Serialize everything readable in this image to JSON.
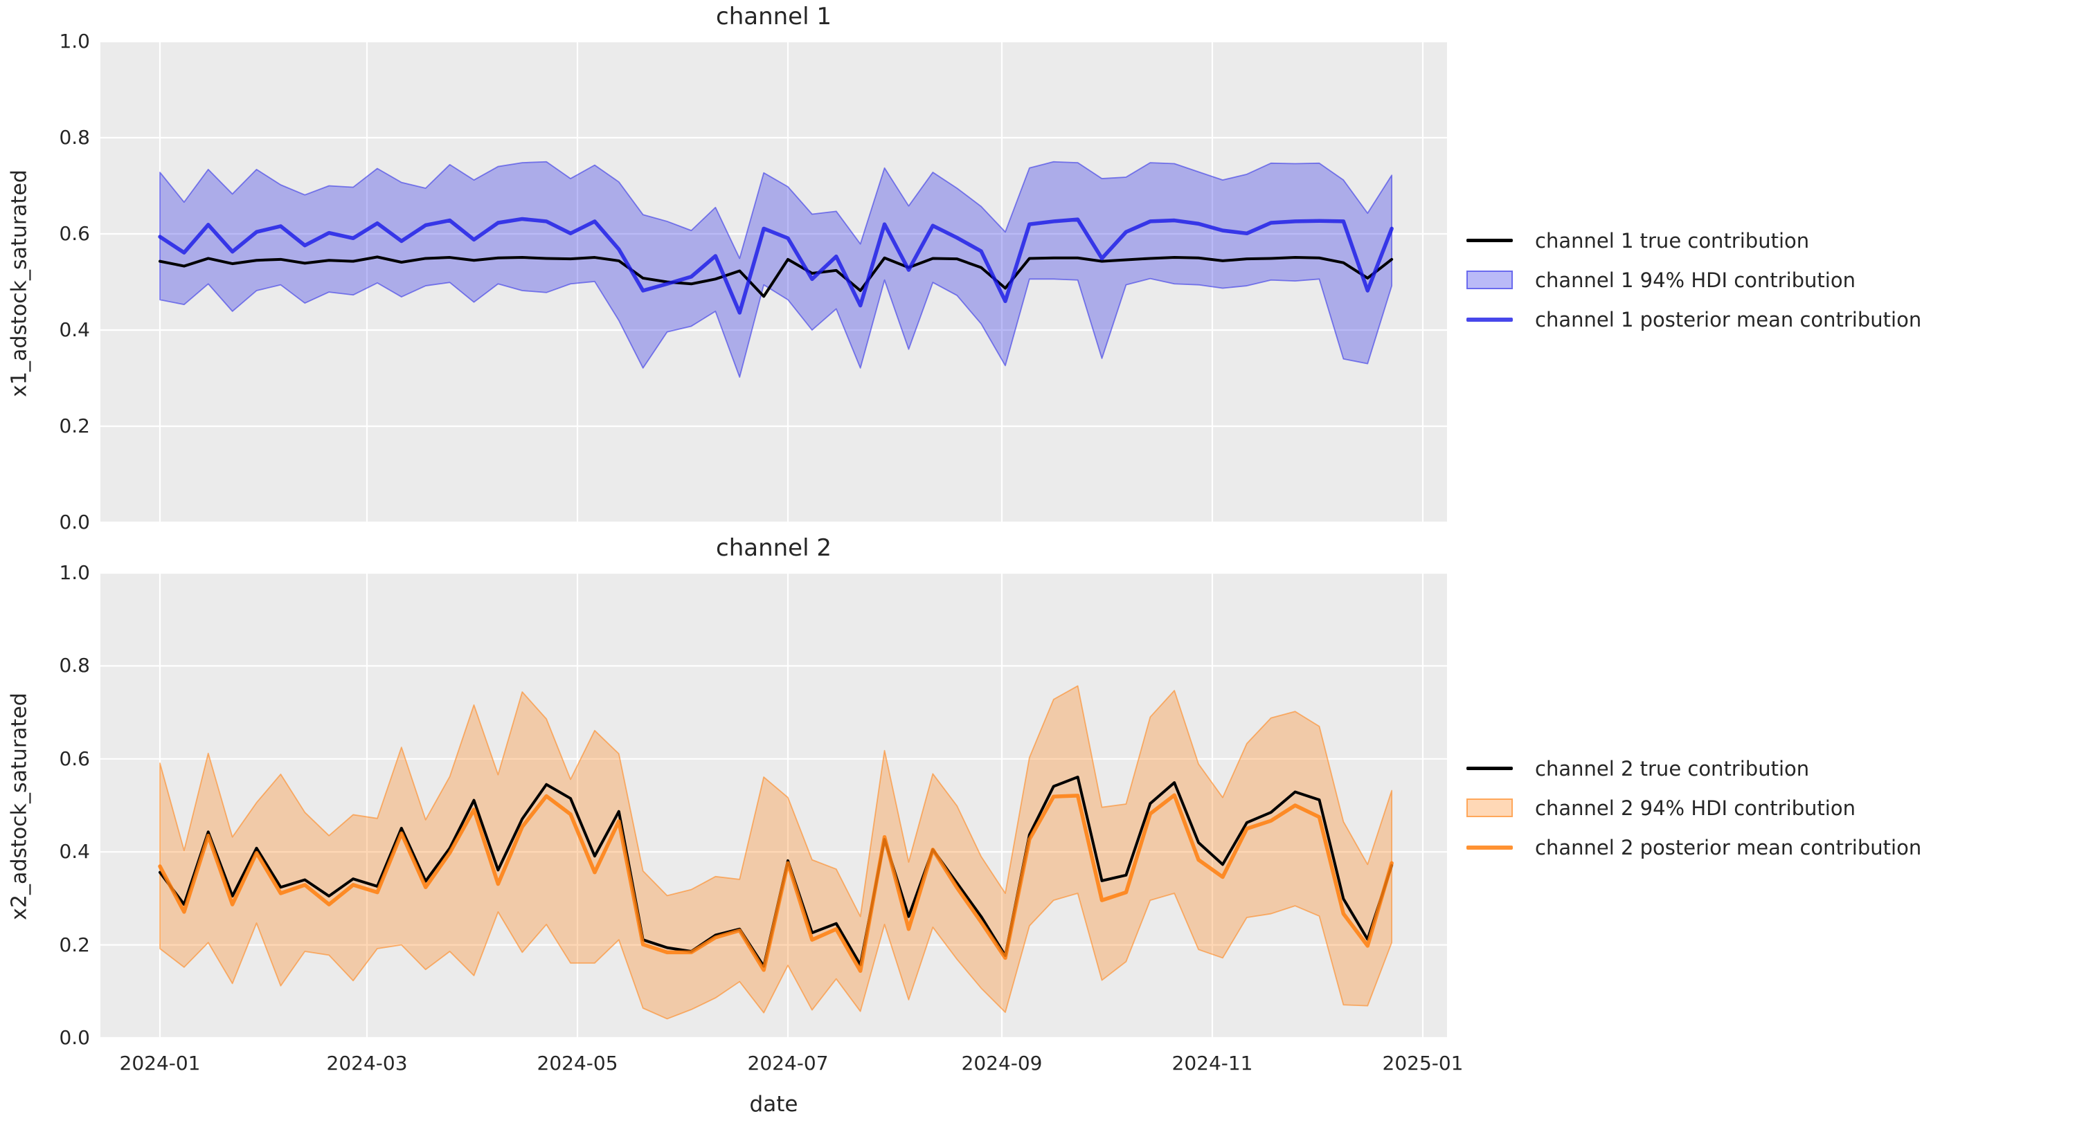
{
  "figure": {
    "xlabel": "date",
    "background": "#ffffff",
    "plot_background": "#ebebeb",
    "grid_color": "#ffffff"
  },
  "axis": {
    "xticks": [
      {
        "label": "2024-01",
        "day": 0
      },
      {
        "label": "2024-03",
        "day": 60
      },
      {
        "label": "2024-05",
        "day": 121
      },
      {
        "label": "2024-07",
        "day": 182
      },
      {
        "label": "2024-09",
        "day": 244
      },
      {
        "label": "2024-11",
        "day": 305
      },
      {
        "label": "2025-01",
        "day": 366
      }
    ],
    "ytick_labels": [
      "0.0",
      "0.2",
      "0.4",
      "0.6",
      "0.8",
      "1.0"
    ]
  },
  "chart_data": [
    {
      "type": "line",
      "title": "channel 1",
      "ylabel": "x1_adstock_saturated",
      "ylim": [
        0.0,
        1.0
      ],
      "grid": true,
      "legend_position": "right",
      "x_dates": [
        "2024-01-01",
        "2024-01-08",
        "2024-01-15",
        "2024-01-22",
        "2024-01-29",
        "2024-02-05",
        "2024-02-12",
        "2024-02-19",
        "2024-02-26",
        "2024-03-04",
        "2024-03-11",
        "2024-03-18",
        "2024-03-25",
        "2024-04-01",
        "2024-04-08",
        "2024-04-15",
        "2024-04-22",
        "2024-04-29",
        "2024-05-06",
        "2024-05-13",
        "2024-05-20",
        "2024-05-27",
        "2024-06-03",
        "2024-06-10",
        "2024-06-17",
        "2024-06-24",
        "2024-07-01",
        "2024-07-08",
        "2024-07-15",
        "2024-07-22",
        "2024-07-29",
        "2024-08-05",
        "2024-08-12",
        "2024-08-19",
        "2024-08-26",
        "2024-09-02",
        "2024-09-09",
        "2024-09-16",
        "2024-09-23",
        "2024-09-30",
        "2024-10-07",
        "2024-10-14",
        "2024-10-21",
        "2024-10-28",
        "2024-11-04",
        "2024-11-11",
        "2024-11-18",
        "2024-11-25",
        "2024-12-02",
        "2024-12-09",
        "2024-12-16",
        "2024-12-23"
      ],
      "series": [
        {
          "name": "channel 1 true contribution",
          "role": "true",
          "color": "#000000",
          "values": [
            0.543,
            0.533,
            0.549,
            0.538,
            0.545,
            0.547,
            0.539,
            0.545,
            0.543,
            0.552,
            0.541,
            0.549,
            0.551,
            0.545,
            0.55,
            0.551,
            0.549,
            0.548,
            0.551,
            0.544,
            0.508,
            0.5,
            0.496,
            0.506,
            0.523,
            0.47,
            0.547,
            0.518,
            0.524,
            0.482,
            0.55,
            0.53,
            0.549,
            0.548,
            0.53,
            0.487,
            0.549,
            0.55,
            0.55,
            0.543,
            0.546,
            0.549,
            0.551,
            0.55,
            0.544,
            0.548,
            0.549,
            0.551,
            0.55,
            0.54,
            0.508,
            0.547
          ]
        },
        {
          "name": "channel 1 94% HDI contribution",
          "role": "band",
          "fill": "rgba(25,25,230,0.30)",
          "edge": "rgba(25,25,230,0.50)",
          "hi": [
            0.728,
            0.666,
            0.734,
            0.683,
            0.734,
            0.702,
            0.681,
            0.7,
            0.697,
            0.736,
            0.707,
            0.695,
            0.744,
            0.712,
            0.74,
            0.748,
            0.75,
            0.715,
            0.743,
            0.708,
            0.64,
            0.626,
            0.607,
            0.655,
            0.549,
            0.727,
            0.698,
            0.641,
            0.647,
            0.579,
            0.737,
            0.658,
            0.728,
            0.695,
            0.657,
            0.604,
            0.737,
            0.75,
            0.748,
            0.715,
            0.718,
            0.748,
            0.746,
            0.729,
            0.712,
            0.724,
            0.747,
            0.746,
            0.747,
            0.712,
            0.643,
            0.722
          ],
          "lo": [
            0.463,
            0.453,
            0.496,
            0.439,
            0.482,
            0.494,
            0.456,
            0.479,
            0.473,
            0.498,
            0.469,
            0.492,
            0.499,
            0.458,
            0.496,
            0.482,
            0.478,
            0.496,
            0.501,
            0.42,
            0.321,
            0.396,
            0.408,
            0.439,
            0.302,
            0.494,
            0.463,
            0.4,
            0.444,
            0.321,
            0.504,
            0.36,
            0.499,
            0.472,
            0.413,
            0.326,
            0.506,
            0.506,
            0.504,
            0.341,
            0.494,
            0.507,
            0.496,
            0.494,
            0.487,
            0.492,
            0.504,
            0.502,
            0.506,
            0.34,
            0.33,
            0.492
          ]
        },
        {
          "name": "channel 1 posterior mean contribution",
          "role": "mean",
          "color": "rgba(25,25,230,0.80)",
          "values": [
            0.594,
            0.561,
            0.619,
            0.563,
            0.604,
            0.616,
            0.576,
            0.602,
            0.591,
            0.622,
            0.585,
            0.618,
            0.628,
            0.588,
            0.623,
            0.631,
            0.626,
            0.601,
            0.626,
            0.568,
            0.482,
            0.496,
            0.511,
            0.554,
            0.436,
            0.611,
            0.591,
            0.506,
            0.553,
            0.451,
            0.62,
            0.525,
            0.617,
            0.592,
            0.564,
            0.46,
            0.62,
            0.626,
            0.63,
            0.549,
            0.604,
            0.626,
            0.628,
            0.621,
            0.607,
            0.601,
            0.623,
            0.626,
            0.627,
            0.626,
            0.482,
            0.611
          ]
        }
      ]
    },
    {
      "type": "line",
      "title": "channel 2",
      "ylabel": "x2_adstock_saturated",
      "ylim": [
        0.0,
        1.0
      ],
      "grid": true,
      "legend_position": "right",
      "x_dates": [
        "2024-01-01",
        "2024-01-08",
        "2024-01-15",
        "2024-01-22",
        "2024-01-29",
        "2024-02-05",
        "2024-02-12",
        "2024-02-19",
        "2024-02-26",
        "2024-03-04",
        "2024-03-11",
        "2024-03-18",
        "2024-03-25",
        "2024-04-01",
        "2024-04-08",
        "2024-04-15",
        "2024-04-22",
        "2024-04-29",
        "2024-05-06",
        "2024-05-13",
        "2024-05-20",
        "2024-05-27",
        "2024-06-03",
        "2024-06-10",
        "2024-06-17",
        "2024-06-24",
        "2024-07-01",
        "2024-07-08",
        "2024-07-15",
        "2024-07-22",
        "2024-07-29",
        "2024-08-05",
        "2024-08-12",
        "2024-08-19",
        "2024-08-26",
        "2024-09-02",
        "2024-09-09",
        "2024-09-16",
        "2024-09-23",
        "2024-09-30",
        "2024-10-07",
        "2024-10-14",
        "2024-10-21",
        "2024-10-28",
        "2024-11-04",
        "2024-11-11",
        "2024-11-18",
        "2024-11-25",
        "2024-12-02",
        "2024-12-09",
        "2024-12-16",
        "2024-12-23"
      ],
      "series": [
        {
          "name": "channel 2 true contribution",
          "role": "true",
          "color": "#000000",
          "values": [
            0.356,
            0.287,
            0.443,
            0.305,
            0.408,
            0.324,
            0.34,
            0.305,
            0.342,
            0.326,
            0.451,
            0.337,
            0.408,
            0.511,
            0.361,
            0.471,
            0.545,
            0.515,
            0.391,
            0.487,
            0.211,
            0.194,
            0.186,
            0.221,
            0.234,
            0.154,
            0.381,
            0.226,
            0.246,
            0.157,
            0.427,
            0.261,
            0.405,
            0.333,
            0.261,
            0.177,
            0.437,
            0.541,
            0.561,
            0.338,
            0.35,
            0.504,
            0.549,
            0.42,
            0.373,
            0.463,
            0.485,
            0.529,
            0.512,
            0.299,
            0.212,
            0.371
          ]
        },
        {
          "name": "channel 2 94% HDI contribution",
          "role": "band",
          "fill": "rgba(255,127,14,0.30)",
          "edge": "rgba(255,127,14,0.55)",
          "hi": [
            0.591,
            0.403,
            0.612,
            0.432,
            0.506,
            0.567,
            0.485,
            0.435,
            0.48,
            0.472,
            0.625,
            0.469,
            0.562,
            0.716,
            0.566,
            0.744,
            0.686,
            0.556,
            0.661,
            0.611,
            0.359,
            0.306,
            0.319,
            0.347,
            0.341,
            0.561,
            0.517,
            0.383,
            0.363,
            0.261,
            0.618,
            0.378,
            0.568,
            0.499,
            0.39,
            0.311,
            0.603,
            0.728,
            0.757,
            0.496,
            0.503,
            0.69,
            0.747,
            0.589,
            0.517,
            0.633,
            0.688,
            0.702,
            0.67,
            0.465,
            0.373,
            0.532
          ],
          "lo": [
            0.192,
            0.152,
            0.205,
            0.117,
            0.247,
            0.112,
            0.186,
            0.178,
            0.123,
            0.192,
            0.2,
            0.147,
            0.186,
            0.134,
            0.271,
            0.184,
            0.244,
            0.161,
            0.161,
            0.211,
            0.064,
            0.041,
            0.061,
            0.086,
            0.121,
            0.054,
            0.156,
            0.06,
            0.127,
            0.057,
            0.244,
            0.082,
            0.238,
            0.169,
            0.107,
            0.055,
            0.241,
            0.296,
            0.311,
            0.124,
            0.164,
            0.296,
            0.311,
            0.19,
            0.172,
            0.259,
            0.267,
            0.284,
            0.262,
            0.071,
            0.069,
            0.205
          ]
        },
        {
          "name": "channel 2 posterior mean contribution",
          "role": "mean",
          "color": "rgba(255,127,14,0.85)",
          "values": [
            0.369,
            0.271,
            0.435,
            0.287,
            0.398,
            0.311,
            0.329,
            0.287,
            0.329,
            0.313,
            0.44,
            0.324,
            0.398,
            0.491,
            0.331,
            0.454,
            0.52,
            0.481,
            0.356,
            0.466,
            0.201,
            0.184,
            0.184,
            0.216,
            0.231,
            0.146,
            0.376,
            0.211,
            0.234,
            0.144,
            0.432,
            0.234,
            0.405,
            0.323,
            0.249,
            0.172,
            0.427,
            0.519,
            0.521,
            0.296,
            0.313,
            0.482,
            0.522,
            0.383,
            0.346,
            0.45,
            0.467,
            0.5,
            0.475,
            0.267,
            0.198,
            0.376
          ]
        }
      ]
    }
  ]
}
